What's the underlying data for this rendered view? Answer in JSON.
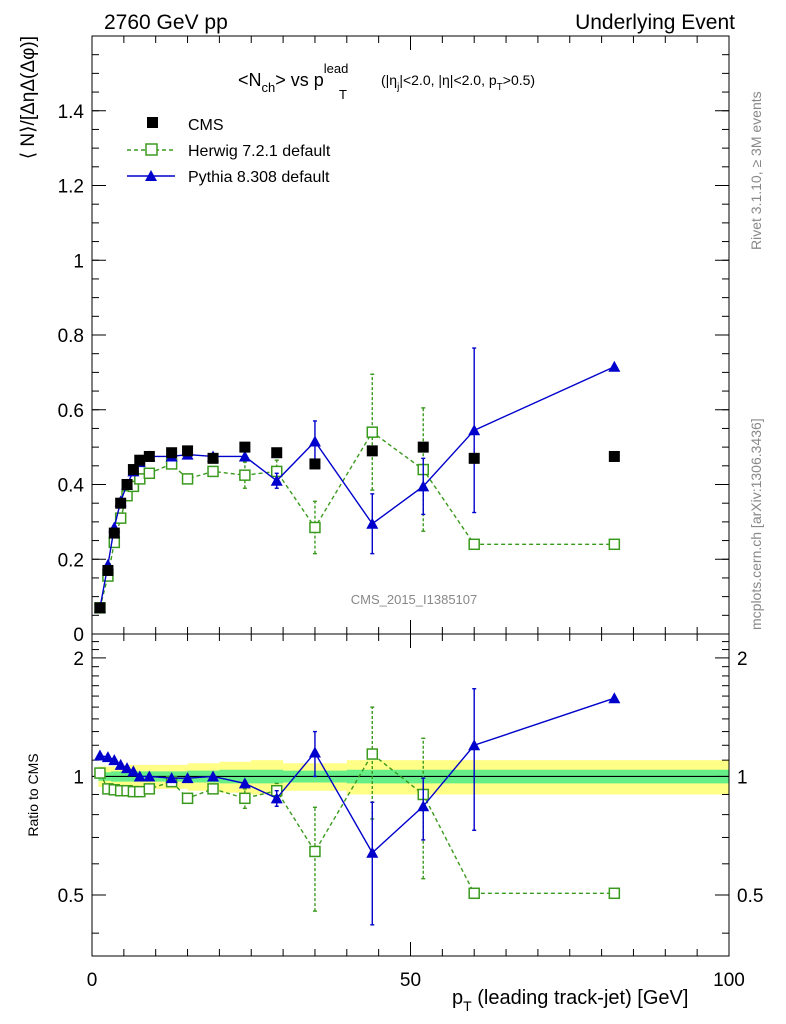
{
  "header": {
    "left": "2760 GeV pp",
    "right": "Underlying Event"
  },
  "plot_title": {
    "main": "<N",
    "main_sub": "ch",
    "main_mid": "> vs p",
    "pt_sup": "lead",
    "pt_sub": "T",
    "cuts_a": " (|η",
    "cuts_a_sub": "j",
    "cuts_b": "|<2.0, |η|<2.0, p",
    "cuts_b_sub": "T",
    "cuts_c": ">0.5)"
  },
  "side_labels": {
    "rivet": "Rivet 3.1.10, ≥ 3M events",
    "mcplots": "mcplots.cern.ch [arXiv:1306.3436]"
  },
  "watermark": "CMS_2015_I1385107",
  "ratio_ylabel": "Ratio to CMS",
  "colors": {
    "cms": "#000000",
    "herwig": "#3a9a1e",
    "pythia": "#0000cc",
    "band_inner": "#66ee88",
    "band_outer": "#ffff88"
  },
  "chart_data": [
    {
      "type": "scatter",
      "panel": "main",
      "ylabel": "⟨ N⟩/[ΔηΔ(Δφ)]",
      "xlabel": "",
      "xlim": [
        0,
        100
      ],
      "ylim": [
        0,
        1.6
      ],
      "yticks": [
        0,
        0.2,
        0.4,
        0.6,
        0.8,
        1,
        1.2,
        1.4
      ],
      "ytick_labels": [
        "0",
        "0.2",
        "0.4",
        "0.6",
        "0.8",
        "1",
        "1.2",
        "1.4"
      ],
      "legend_position": "top-left",
      "series": [
        {
          "name": "CMS",
          "marker": "filled-square",
          "x": [
            1.25,
            2.5,
            3.5,
            4.5,
            5.5,
            6.5,
            7.5,
            9,
            12.5,
            15,
            19,
            24,
            29,
            35,
            44,
            52,
            60,
            82
          ],
          "y": [
            0.07,
            0.17,
            0.27,
            0.35,
            0.4,
            0.44,
            0.465,
            0.475,
            0.485,
            0.49,
            0.47,
            0.5,
            0.485,
            0.455,
            0.49,
            0.5,
            0.47,
            0.475
          ]
        },
        {
          "name": "Herwig 7.2.1 default",
          "marker": "open-square",
          "line": "dashed",
          "x": [
            1.25,
            2.5,
            3.5,
            4.5,
            5.5,
            6.5,
            7.5,
            9,
            12.5,
            15,
            19,
            24,
            29,
            35,
            44,
            52,
            60,
            82
          ],
          "y": [
            0.07,
            0.155,
            0.245,
            0.31,
            0.37,
            0.395,
            0.415,
            0.43,
            0.455,
            0.415,
            0.435,
            0.425,
            0.435,
            0.285,
            0.54,
            0.44,
            0.24,
            0.24
          ],
          "yerr": [
            0,
            0,
            0,
            0,
            0,
            0,
            0,
            0,
            0,
            0,
            0,
            0.035,
            0.03,
            0.07,
            0.155,
            0.165,
            0,
            0
          ]
        },
        {
          "name": "Pythia 8.308 default",
          "marker": "filled-triangle",
          "line": "solid",
          "x": [
            1.25,
            2.5,
            3.5,
            4.5,
            5.5,
            6.5,
            7.5,
            9,
            12.5,
            15,
            19,
            24,
            29,
            35,
            44,
            52,
            60,
            82
          ],
          "y": [
            0.07,
            0.185,
            0.285,
            0.355,
            0.4,
            0.435,
            0.46,
            0.475,
            0.475,
            0.48,
            0.475,
            0.475,
            0.41,
            0.515,
            0.295,
            0.395,
            0.545,
            0.715
          ],
          "yerr": [
            0,
            0,
            0,
            0,
            0,
            0,
            0,
            0,
            0,
            0,
            0,
            0,
            0.02,
            0.055,
            0.08,
            0.075,
            0.22,
            0
          ]
        }
      ]
    },
    {
      "type": "line",
      "panel": "ratio",
      "ylabel": "Ratio to CMS",
      "xlabel": "p_T (leading track-jet) [GeV]",
      "xlim": [
        0,
        100
      ],
      "ylim": [
        0.35,
        2.3
      ],
      "yticks": [
        0.5,
        1,
        2
      ],
      "ytick_labels": [
        "0.5",
        "1",
        "2"
      ],
      "xticks": [
        0,
        50,
        100
      ],
      "xtick_labels": [
        "0",
        "50",
        "100"
      ],
      "band_x": [
        1,
        2,
        3,
        5,
        8,
        15,
        20,
        25,
        30,
        40,
        50,
        60,
        100
      ],
      "band_inner": [
        0.025,
        0.025,
        0.03,
        0.03,
        0.03,
        0.035,
        0.04,
        0.04,
        0.035,
        0.04,
        0.04,
        0.04,
        0.04
      ],
      "band_outer": [
        0.06,
        0.06,
        0.06,
        0.07,
        0.07,
        0.08,
        0.09,
        0.1,
        0.08,
        0.1,
        0.1,
        0.1,
        0.1
      ],
      "series": [
        {
          "name": "Herwig 7.2.1 default",
          "x": [
            1.25,
            2.5,
            3.5,
            4.5,
            5.5,
            6.5,
            7.5,
            9,
            12.5,
            15,
            19,
            24,
            29,
            35,
            44,
            52,
            60,
            82
          ],
          "y": [
            1.02,
            0.93,
            0.925,
            0.92,
            0.92,
            0.915,
            0.915,
            0.93,
            0.97,
            0.88,
            0.93,
            0.88,
            0.92,
            0.645,
            1.14,
            0.9,
            0.505,
            0.505
          ],
          "yerr": [
            0,
            0,
            0,
            0,
            0,
            0,
            0,
            0,
            0,
            0,
            0,
            0.05,
            0.04,
            0.19,
            0.36,
            0.35,
            0,
            0
          ]
        },
        {
          "name": "Pythia 8.308 default",
          "x": [
            1.25,
            2.5,
            3.5,
            4.5,
            5.5,
            6.5,
            7.5,
            9,
            12.5,
            15,
            19,
            24,
            29,
            35,
            44,
            52,
            60,
            82
          ],
          "y": [
            1.13,
            1.12,
            1.1,
            1.07,
            1.05,
            1.03,
            1.0,
            1.0,
            0.99,
            0.99,
            1.0,
            0.96,
            0.88,
            1.15,
            0.64,
            0.84,
            1.2,
            1.58
          ],
          "yerr": [
            0,
            0,
            0,
            0,
            0,
            0,
            0,
            0,
            0,
            0,
            0,
            0,
            0.04,
            0.15,
            0.22,
            0.15,
            0.47,
            0
          ]
        }
      ]
    }
  ]
}
